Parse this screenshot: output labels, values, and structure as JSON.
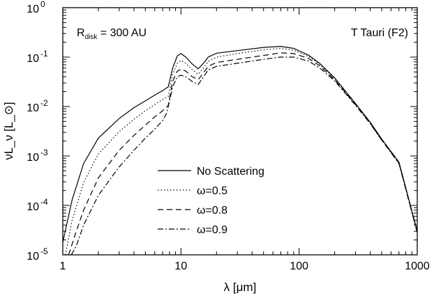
{
  "chart_data": {
    "type": "line",
    "x_scale": "log",
    "y_scale": "log",
    "xlim": [
      1,
      1000
    ],
    "ylim": [
      1e-05,
      1
    ],
    "xlabel": "λ [μm]",
    "ylabel": "νL_ν [L_⊙]",
    "grid": false,
    "annotations": {
      "left": {
        "base": "R",
        "sub": "disk",
        "rest": " = 300 AU"
      },
      "right": "T Tauri (F2)"
    },
    "x_ticks": [
      {
        "value": 1,
        "label": "1"
      },
      {
        "value": 10,
        "label": "10"
      },
      {
        "value": 100,
        "label": "100"
      },
      {
        "value": 1000,
        "label": "1000"
      }
    ],
    "y_ticks": [
      {
        "value": 1e-05,
        "base": "10",
        "exp": "-5"
      },
      {
        "value": 0.0001,
        "base": "10",
        "exp": "-4"
      },
      {
        "value": 0.001,
        "base": "10",
        "exp": "-3"
      },
      {
        "value": 0.01,
        "base": "10",
        "exp": "-2"
      },
      {
        "value": 0.1,
        "base": "10",
        "exp": "-1"
      },
      {
        "value": 1,
        "base": "10",
        "exp": "0"
      }
    ],
    "legend_position": "lower-left",
    "series": [
      {
        "name": "No Scattering",
        "dash": "solid",
        "points": [
          [
            1,
            1.8e-05
          ],
          [
            1.2,
            0.00013
          ],
          [
            1.5,
            0.0007
          ],
          [
            2,
            0.0023
          ],
          [
            3,
            0.0057
          ],
          [
            4,
            0.0095
          ],
          [
            5,
            0.013
          ],
          [
            6,
            0.017
          ],
          [
            7,
            0.021
          ],
          [
            7.8,
            0.025
          ],
          [
            8.5,
            0.06
          ],
          [
            9.3,
            0.105
          ],
          [
            10,
            0.118
          ],
          [
            11,
            0.1
          ],
          [
            12.5,
            0.072
          ],
          [
            14,
            0.058
          ],
          [
            15.5,
            0.075
          ],
          [
            17,
            0.1
          ],
          [
            20,
            0.12
          ],
          [
            30,
            0.135
          ],
          [
            50,
            0.157
          ],
          [
            70,
            0.165
          ],
          [
            90,
            0.15
          ],
          [
            120,
            0.11
          ],
          [
            150,
            0.074
          ],
          [
            200,
            0.038
          ],
          [
            300,
            0.0115
          ],
          [
            400,
            0.0048
          ],
          [
            500,
            0.0022
          ],
          [
            700,
            0.00075
          ],
          [
            1000,
            3e-05
          ]
        ]
      },
      {
        "name": "ω=0.5",
        "dash": "dotted",
        "points": [
          [
            1.05,
            1e-05
          ],
          [
            1.2,
            5e-05
          ],
          [
            1.5,
            0.00029
          ],
          [
            2,
            0.0011
          ],
          [
            3,
            0.0031
          ],
          [
            4,
            0.0055
          ],
          [
            5,
            0.0082
          ],
          [
            6,
            0.011
          ],
          [
            7,
            0.014
          ],
          [
            7.8,
            0.016
          ],
          [
            8.5,
            0.045
          ],
          [
            9.3,
            0.075
          ],
          [
            10,
            0.085
          ],
          [
            11,
            0.075
          ],
          [
            12.5,
            0.055
          ],
          [
            14,
            0.045
          ],
          [
            15.5,
            0.06
          ],
          [
            17,
            0.082
          ],
          [
            20,
            0.1
          ],
          [
            30,
            0.118
          ],
          [
            50,
            0.14
          ],
          [
            70,
            0.15
          ],
          [
            90,
            0.138
          ],
          [
            120,
            0.104
          ],
          [
            150,
            0.071
          ],
          [
            200,
            0.037
          ],
          [
            300,
            0.0113
          ],
          [
            400,
            0.0047
          ],
          [
            500,
            0.0022
          ],
          [
            700,
            0.00074
          ],
          [
            1000,
            3e-05
          ]
        ]
      },
      {
        "name": "ω=0.8",
        "dash": "dashed",
        "points": [
          [
            1.12,
            1e-05
          ],
          [
            1.3,
            3e-05
          ],
          [
            1.5,
            8e-05
          ],
          [
            2,
            0.00036
          ],
          [
            3,
            0.0013
          ],
          [
            4,
            0.0026
          ],
          [
            5,
            0.0042
          ],
          [
            6,
            0.0062
          ],
          [
            7,
            0.0082
          ],
          [
            7.8,
            0.0105
          ],
          [
            8.5,
            0.032
          ],
          [
            9.3,
            0.052
          ],
          [
            10,
            0.057
          ],
          [
            11,
            0.052
          ],
          [
            12.5,
            0.04
          ],
          [
            14,
            0.035
          ],
          [
            15.5,
            0.048
          ],
          [
            17,
            0.065
          ],
          [
            20,
            0.078
          ],
          [
            30,
            0.09
          ],
          [
            50,
            0.108
          ],
          [
            70,
            0.122
          ],
          [
            90,
            0.118
          ],
          [
            120,
            0.094
          ],
          [
            150,
            0.066
          ],
          [
            200,
            0.035
          ],
          [
            300,
            0.011
          ],
          [
            400,
            0.0046
          ],
          [
            500,
            0.0021
          ],
          [
            700,
            0.00072
          ],
          [
            1000,
            2.9e-05
          ]
        ]
      },
      {
        "name": "ω=0.9",
        "dash": "dashdot",
        "points": [
          [
            1.18,
            1e-05
          ],
          [
            1.3,
            1.5e-05
          ],
          [
            1.5,
            4e-05
          ],
          [
            2,
            0.00016
          ],
          [
            3,
            0.0006
          ],
          [
            4,
            0.0013
          ],
          [
            5,
            0.0023
          ],
          [
            6,
            0.0035
          ],
          [
            7,
            0.0052
          ],
          [
            7.6,
            0.0075
          ],
          [
            8.5,
            0.025
          ],
          [
            9.3,
            0.04
          ],
          [
            10,
            0.043
          ],
          [
            11,
            0.04
          ],
          [
            12.5,
            0.032
          ],
          [
            14,
            0.028
          ],
          [
            15.5,
            0.04
          ],
          [
            17,
            0.055
          ],
          [
            20,
            0.065
          ],
          [
            30,
            0.075
          ],
          [
            50,
            0.09
          ],
          [
            70,
            0.1
          ],
          [
            90,
            0.1
          ],
          [
            120,
            0.083
          ],
          [
            150,
            0.06
          ],
          [
            200,
            0.033
          ],
          [
            300,
            0.0106
          ],
          [
            400,
            0.0045
          ],
          [
            500,
            0.0021
          ],
          [
            700,
            0.0007
          ],
          [
            1000,
            2.8e-05
          ]
        ]
      }
    ]
  }
}
